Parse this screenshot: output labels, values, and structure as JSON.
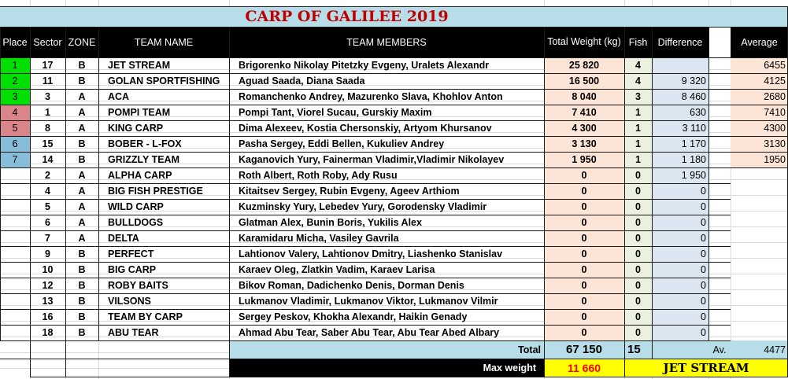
{
  "title": "CARP OF GALILEE 2019",
  "headers": {
    "place": "Place",
    "sector": "Sector",
    "zone": "ZONE",
    "team_name": "TEAM NAME",
    "team_members": "TEAM MEMBERS",
    "total_weight": "Total Weight (kg)",
    "fish": "Fish",
    "difference": "Difference",
    "average": "Average"
  },
  "rows": [
    {
      "place": "1",
      "sector": "17",
      "zone": "B",
      "team": "JET STREAM",
      "members": "Brigorenko Nikolay Pitetzky Evgeny, Uralets Alexandr",
      "weight": "25 820",
      "fish": "4",
      "difference": "",
      "average": "6455"
    },
    {
      "place": "2",
      "sector": "11",
      "zone": "B",
      "team": "GOLAN SPORTFISHING",
      "members": "Aguad Saada, Diana Saada",
      "weight": "16 500",
      "fish": "4",
      "difference": "9 320",
      "average": "4125"
    },
    {
      "place": "3",
      "sector": "3",
      "zone": "A",
      "team": "ACA",
      "members": "Romanchenko Andrey, Mazurenko Slava, Khohlov Anton",
      "weight": "8 040",
      "fish": "3",
      "difference": "8 460",
      "average": "2680"
    },
    {
      "place": "4",
      "sector": "1",
      "zone": "A",
      "team": "POMPI TEAM",
      "members": "Pompi Tant, Viorel Sucau, Gurskiy Maxim",
      "weight": "7 410",
      "fish": "1",
      "difference": "630",
      "average": "7410"
    },
    {
      "place": "5",
      "sector": "8",
      "zone": "A",
      "team": "KING CARP",
      "members": "Dima Alexeev, Kostia Chersonskiy, Artyom Khursanov",
      "weight": "4 300",
      "fish": "1",
      "difference": "3 110",
      "average": "4300"
    },
    {
      "place": "6",
      "sector": "15",
      "zone": "B",
      "team": "BOBER - L-FOX",
      "members": "Pasha Sergey, Eddi Bellen, Kukuliev Andrey",
      "weight": "3 130",
      "fish": "1",
      "difference": "1 170",
      "average": "3130"
    },
    {
      "place": "7",
      "sector": "14",
      "zone": "B",
      "team": "GRIZZLY TEAM",
      "members": "Kaganovich Yury, Fainerman Vladimir,Vladimir Nikolayev",
      "weight": "1 950",
      "fish": "1",
      "difference": "1 180",
      "average": "1950"
    },
    {
      "place": "",
      "sector": "2",
      "zone": "A",
      "team": "ALPHA CARP",
      "members": "Roth Albert, Roth Roby, Ady Rusu",
      "weight": "0",
      "fish": "0",
      "difference": "1 950",
      "average": ""
    },
    {
      "place": "",
      "sector": "4",
      "zone": "A",
      "team": "BIG FISH PRESTIGE",
      "members": "Kitaitsev Sergey, Rubin Evgeny, Ageev Arthiom",
      "weight": "0",
      "fish": "0",
      "difference": "0",
      "average": ""
    },
    {
      "place": "",
      "sector": "5",
      "zone": "A",
      "team": "WILD CARP",
      "members": "Kuzminsky Yury, Lebedev Yury, Gorodensky Vladimir",
      "weight": "0",
      "fish": "0",
      "difference": "0",
      "average": ""
    },
    {
      "place": "",
      "sector": "6",
      "zone": "A",
      "team": "BULLDOGS",
      "members": "Glatman Alex, Bunin Boris, Yukilis Alex",
      "weight": "0",
      "fish": "0",
      "difference": "0",
      "average": ""
    },
    {
      "place": "",
      "sector": "7",
      "zone": "A",
      "team": "DELTA",
      "members": "Karamidaru Micha, Vasiley Gavrila",
      "weight": "0",
      "fish": "0",
      "difference": "0",
      "average": ""
    },
    {
      "place": "",
      "sector": "9",
      "zone": "B",
      "team": "PERFECT",
      "members": "Lahtionov Valery, Lahtionov Dmitry, Liashenko Stanislav",
      "weight": "0",
      "fish": "0",
      "difference": "0",
      "average": ""
    },
    {
      "place": "",
      "sector": "10",
      "zone": "B",
      "team": "BIG CARP",
      "members": "Karaev Oleg, Zlatkin Vadim, Karaev Larisa",
      "weight": "0",
      "fish": "0",
      "difference": "0",
      "average": ""
    },
    {
      "place": "",
      "sector": "12",
      "zone": "B",
      "team": "ROBY BAITS",
      "members": "Bikov Roman, Dadichenko Denis, Dorman Denis",
      "weight": "0",
      "fish": "0",
      "difference": "0",
      "average": ""
    },
    {
      "place": "",
      "sector": "13",
      "zone": "B",
      "team": "VILSONS",
      "members": "Lukmanov Vladimir, Lukmanov Viktor, Lukmanov Vilmir",
      "weight": "0",
      "fish": "0",
      "difference": "0",
      "average": ""
    },
    {
      "place": "",
      "sector": "16",
      "zone": "B",
      "team": "TEAM BY CARP",
      "members": "Sergey Peskov, Khokha Alexandr, Haikin Genady",
      "weight": "0",
      "fish": "0",
      "difference": "0",
      "average": ""
    },
    {
      "place": "",
      "sector": "18",
      "zone": "B",
      "team": "ABU TEAR",
      "members": "Ahmad Abu Tear, Saber Abu Tear, Abu Tear Abed Albary",
      "weight": "0",
      "fish": "0",
      "difference": "0",
      "average": ""
    }
  ],
  "totals": {
    "label": "Total",
    "weight": "67 150",
    "fish": "15",
    "avg_label": "Av.",
    "average": "4477"
  },
  "max": {
    "label": "Max weight",
    "weight": "11 660",
    "team": "JET STREAM"
  },
  "colors": {
    "title_bar": "#b7dee8",
    "title_text": "#c00000",
    "header_bg": "#000000",
    "header_text": "#ffffff",
    "place_1_3": "#00e000",
    "place_4_5": "#d9858a",
    "place_6_7": "#87bdd8",
    "weight_fill": "#fce4d6",
    "fish_fill": "#ebf1de",
    "difference_fill": "#dce6f1",
    "average_fill": "#fce4d6",
    "totals_bar": "#b7dee8",
    "max_weight_value": "#ff0000",
    "max_highlight": "#ffff00"
  }
}
